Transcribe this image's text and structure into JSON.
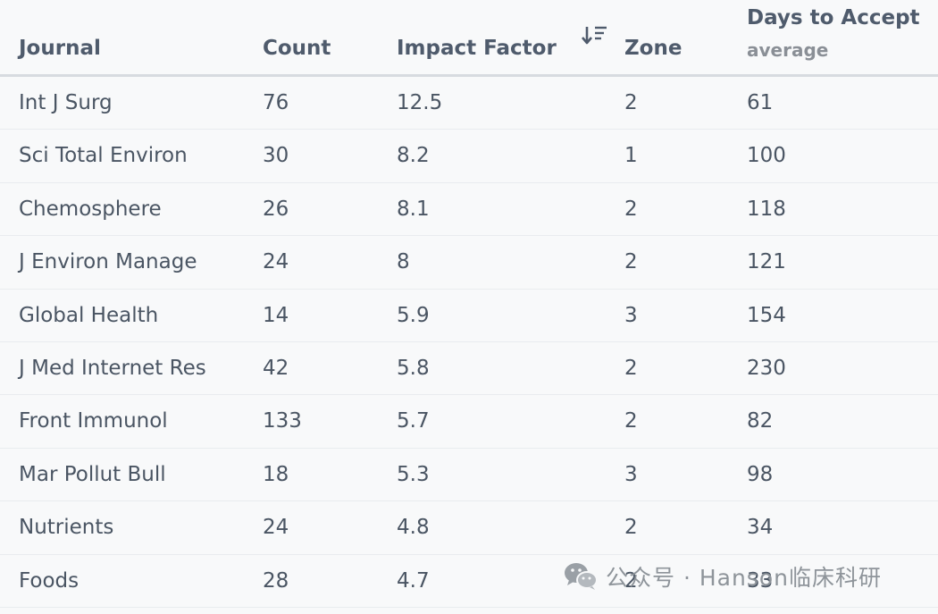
{
  "columns": {
    "journal": "Journal",
    "count": "Count",
    "impact": "Impact Factor",
    "zone": "Zone",
    "days": "Days to Accept",
    "days_sub": "average"
  },
  "sort_icon": "sort-descending-icon",
  "rows": [
    {
      "journal": "Int J Surg",
      "count": "76",
      "impact": "12.5",
      "zone": "2",
      "days": "61"
    },
    {
      "journal": "Sci Total Environ",
      "count": "30",
      "impact": "8.2",
      "zone": "1",
      "days": "100"
    },
    {
      "journal": "Chemosphere",
      "count": "26",
      "impact": "8.1",
      "zone": "2",
      "days": "118"
    },
    {
      "journal": "J Environ Manage",
      "count": "24",
      "impact": "8",
      "zone": "2",
      "days": "121"
    },
    {
      "journal": "Global Health",
      "count": "14",
      "impact": "5.9",
      "zone": "3",
      "days": "154"
    },
    {
      "journal": "J Med Internet Res",
      "count": "42",
      "impact": "5.8",
      "zone": "2",
      "days": "230"
    },
    {
      "journal": "Front Immunol",
      "count": "133",
      "impact": "5.7",
      "zone": "2",
      "days": "82"
    },
    {
      "journal": "Mar Pollut Bull",
      "count": "18",
      "impact": "5.3",
      "zone": "3",
      "days": "98"
    },
    {
      "journal": "Nutrients",
      "count": "24",
      "impact": "4.8",
      "zone": "2",
      "days": "34"
    },
    {
      "journal": "Foods",
      "count": "28",
      "impact": "4.7",
      "zone": "2",
      "days": "33"
    }
  ],
  "watermark": {
    "icon": "wechat-icon",
    "text": "公众号 · Hanson临床科研"
  }
}
